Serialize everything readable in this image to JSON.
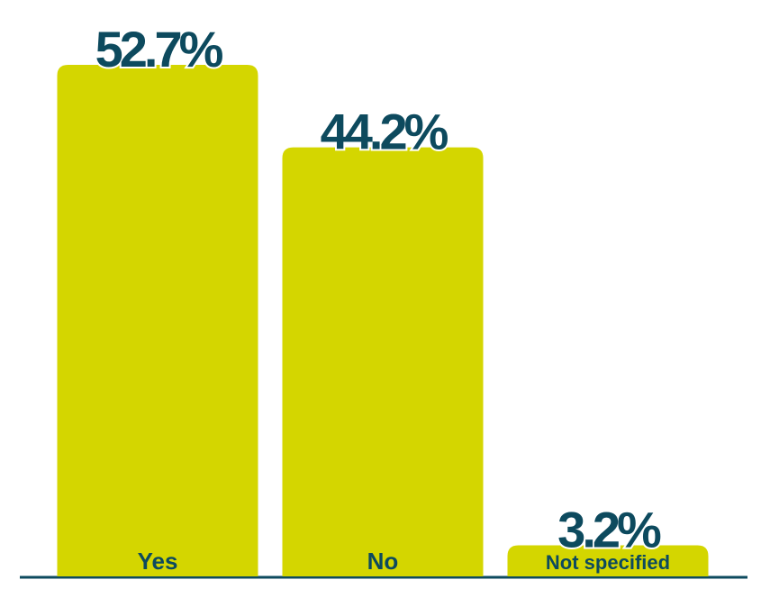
{
  "chart_data": {
    "type": "bar",
    "categories": [
      "Yes",
      "No",
      "Not specified"
    ],
    "values": [
      52.7,
      44.2,
      3.2
    ],
    "value_labels": [
      "52.7%",
      "44.2%",
      "3.2%"
    ],
    "color": "#d4d600"
  }
}
